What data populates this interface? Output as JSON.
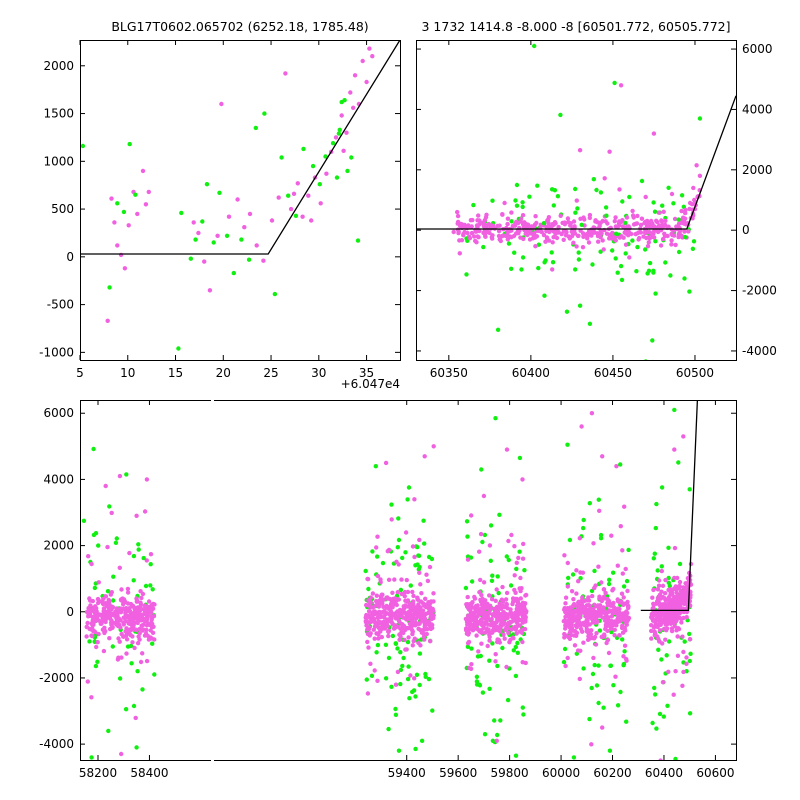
{
  "colors": {
    "series_a": "#f060e0",
    "series_b": "#10f010",
    "model_line": "#000000"
  },
  "chart_data": [
    {
      "id": "top-left",
      "type": "scatter",
      "title": "BLG17T0602.065702 (6252.18, 1785.48)",
      "xlabel": "",
      "ylabel": "",
      "x_offset_label": "+6.047e4",
      "xlim": [
        5,
        38.5
      ],
      "ylim": [
        -1080,
        2270
      ],
      "xticks": [
        5,
        10,
        15,
        20,
        25,
        30,
        35
      ],
      "yticks": [
        -1000,
        -500,
        0,
        500,
        1000,
        1500,
        2000
      ],
      "y_axis_side": "left",
      "model_line": {
        "x": [
          5,
          24.7,
          38.5
        ],
        "y": [
          30,
          30,
          2270
        ]
      },
      "series": [
        {
          "color": "#f060e0",
          "points": [
            [
              7.9,
              -670
            ],
            [
              8.3,
              610
            ],
            [
              8.6,
              360
            ],
            [
              8.9,
              120
            ],
            [
              9.3,
              20
            ],
            [
              9.7,
              -120
            ],
            [
              10.1,
              330
            ],
            [
              10.6,
              680
            ],
            [
              11.0,
              450
            ],
            [
              11.6,
              900
            ],
            [
              11.9,
              550
            ],
            [
              12.2,
              680
            ],
            [
              16.9,
              360
            ],
            [
              17.4,
              250
            ],
            [
              18.0,
              -50
            ],
            [
              18.6,
              -350
            ],
            [
              19.4,
              220
            ],
            [
              19.8,
              1600
            ],
            [
              20.6,
              420
            ],
            [
              21.5,
              600
            ],
            [
              22.2,
              310
            ],
            [
              22.8,
              450
            ],
            [
              23.5,
              120
            ],
            [
              24.2,
              -40
            ],
            [
              25.1,
              380
            ],
            [
              25.8,
              620
            ],
            [
              26.5,
              1920
            ],
            [
              27.1,
              500
            ],
            [
              27.8,
              770
            ],
            [
              28.3,
              420
            ],
            [
              28.9,
              640
            ],
            [
              29.6,
              830
            ],
            [
              30.2,
              560
            ],
            [
              30.8,
              870
            ],
            [
              31.3,
              1100
            ],
            [
              31.8,
              1250
            ],
            [
              32.4,
              1480
            ],
            [
              32.9,
              1300
            ],
            [
              33.3,
              1720
            ],
            [
              33.8,
              1900
            ],
            [
              34.2,
              1600
            ],
            [
              34.6,
              2050
            ],
            [
              35.0,
              1830
            ],
            [
              35.3,
              2180
            ],
            [
              35.6,
              2100
            ],
            [
              33.6,
              1560
            ],
            [
              32.6,
              1110
            ],
            [
              29.2,
              380
            ],
            [
              27.4,
              660
            ]
          ]
        },
        {
          "color": "#10f010",
          "points": [
            [
              5.3,
              1160
            ],
            [
              8.1,
              -320
            ],
            [
              8.9,
              560
            ],
            [
              9.6,
              470
            ],
            [
              10.2,
              1180
            ],
            [
              10.8,
              650
            ],
            [
              15.3,
              -960
            ],
            [
              15.6,
              460
            ],
            [
              16.6,
              -20
            ],
            [
              17.1,
              180
            ],
            [
              17.8,
              370
            ],
            [
              18.3,
              760
            ],
            [
              19.0,
              150
            ],
            [
              19.6,
              670
            ],
            [
              20.4,
              220
            ],
            [
              21.1,
              -170
            ],
            [
              21.9,
              180
            ],
            [
              22.7,
              -30
            ],
            [
              23.4,
              1350
            ],
            [
              24.3,
              1500
            ],
            [
              25.4,
              -390
            ],
            [
              26.1,
              1040
            ],
            [
              26.8,
              640
            ],
            [
              27.6,
              430
            ],
            [
              28.4,
              1130
            ],
            [
              29.4,
              950
            ],
            [
              30.1,
              760
            ],
            [
              30.7,
              1050
            ],
            [
              31.5,
              1190
            ],
            [
              32.1,
              1290
            ],
            [
              32.4,
              1620
            ],
            [
              32.7,
              1640
            ],
            [
              33.0,
              900
            ],
            [
              33.4,
              1040
            ],
            [
              34.1,
              170
            ],
            [
              32.2,
              1330
            ],
            [
              31.9,
              830
            ]
          ]
        }
      ]
    },
    {
      "id": "top-right",
      "type": "scatter",
      "title": "3 1732 1414.8 -8.000 -8 [60501.772, 60505.772]",
      "xlabel": "",
      "ylabel": "",
      "xlim": [
        60330,
        60525
      ],
      "ylim": [
        -4300,
        6300
      ],
      "xticks": [
        60350,
        60400,
        60450,
        60500
      ],
      "yticks": [
        -4000,
        -2000,
        0,
        2000,
        4000,
        6000
      ],
      "y_axis_side": "right",
      "model_line": {
        "x": [
          60330,
          60495,
          60525
        ],
        "y": [
          40,
          40,
          4450
        ]
      },
      "series": [
        {
          "color": "#f060e0",
          "points": [
            [
              60353,
              -60
            ],
            [
              60358,
              -330
            ],
            [
              60362,
              120
            ],
            [
              60367,
              -40
            ],
            [
              60372,
              330
            ],
            [
              60377,
              150
            ],
            [
              60382,
              -210
            ],
            [
              60386,
              380
            ],
            [
              60391,
              -110
            ],
            [
              60396,
              260
            ],
            [
              60402,
              -200
            ],
            [
              60406,
              140
            ],
            [
              60411,
              430
            ],
            [
              60415,
              -120
            ],
            [
              60420,
              -320
            ],
            [
              60424,
              160
            ],
            [
              60428,
              980
            ],
            [
              60432,
              -220
            ],
            [
              60436,
              500
            ],
            [
              60441,
              -380
            ],
            [
              60445,
              1720
            ],
            [
              60449,
              -160
            ],
            [
              60454,
              1350
            ],
            [
              60458,
              -480
            ],
            [
              60462,
              640
            ],
            [
              60466,
              -260
            ],
            [
              60470,
              1100
            ],
            [
              60474,
              -180
            ],
            [
              60478,
              580
            ],
            [
              60482,
              310
            ],
            [
              60486,
              1200
            ],
            [
              60490,
              -230
            ],
            [
              60494,
              380
            ],
            [
              60497,
              900
            ],
            [
              60499,
              1400
            ],
            [
              60501,
              2150
            ],
            [
              60503,
              1800
            ],
            [
              60500,
              700
            ],
            [
              60496,
              -40
            ],
            [
              60475,
              3200
            ],
            [
              60455,
              4800
            ],
            [
              60430,
              2650
            ],
            [
              60427,
              -4400
            ],
            [
              60460,
              -900
            ],
            [
              60413,
              -1300
            ],
            [
              60384,
              900
            ],
            [
              60448,
              2600
            ]
          ]
        },
        {
          "color": "#10f010",
          "points": [
            [
              60365,
              830
            ],
            [
              60371,
              -560
            ],
            [
              60380,
              -3300
            ],
            [
              60388,
              -1280
            ],
            [
              60395,
              770
            ],
            [
              60402,
              6100
            ],
            [
              60409,
              -1000
            ],
            [
              60414,
              820
            ],
            [
              60418,
              3820
            ],
            [
              60422,
              -2700
            ],
            [
              60427,
              -1300
            ],
            [
              60430,
              -2500
            ],
            [
              60436,
              -3100
            ],
            [
              60440,
              1330
            ],
            [
              60446,
              480
            ],
            [
              60451,
              4880
            ],
            [
              60455,
              -1190
            ],
            [
              60460,
              1100
            ],
            [
              60465,
              -560
            ],
            [
              60470,
              -4350
            ],
            [
              60474,
              -3650
            ],
            [
              60480,
              810
            ],
            [
              60485,
              -1500
            ],
            [
              60490,
              350
            ],
            [
              60494,
              -230
            ],
            [
              60503,
              3700
            ],
            [
              60408,
              230
            ],
            [
              60452,
              -120
            ],
            [
              60476,
              -2100
            ],
            [
              60431,
              180
            ]
          ]
        }
      ]
    },
    {
      "id": "bottom",
      "type": "scatter",
      "title": "",
      "xlabel": "",
      "ylabel": "",
      "xlim": [
        58130,
        60680
      ],
      "ylim": [
        -4480,
        6400
      ],
      "xticks": [
        58200,
        58400,
        59400,
        59600,
        59800,
        60000,
        60200,
        60400,
        60600
      ],
      "yticks": [
        -4000,
        -2000,
        0,
        2000,
        4000,
        6000
      ],
      "y_axis_side": "left",
      "model_line": {
        "x": [
          60310,
          60495,
          60530
        ],
        "y": [
          40,
          40,
          6400
        ]
      },
      "clusters": [
        {
          "x_range": [
            58155,
            58420
          ],
          "n": 320,
          "outliers": 60
        },
        {
          "x_range": [
            59240,
            59505
          ],
          "n": 340,
          "outliers": 95
        },
        {
          "x_range": [
            59630,
            59865
          ],
          "n": 320,
          "outliers": 80
        },
        {
          "x_range": [
            60010,
            60265
          ],
          "n": 320,
          "outliers": 80
        },
        {
          "x_range": [
            60350,
            60505
          ],
          "n": 280,
          "outliers": 55
        }
      ],
      "series": [
        {
          "color": "#f060e0",
          "points": [
            [
              58230,
              3800
            ],
            [
              58285,
              4100
            ],
            [
              58350,
              2900
            ],
            [
              58390,
              4000
            ],
            [
              59320,
              4500
            ],
            [
              59430,
              3400
            ],
            [
              59470,
              4700
            ],
            [
              59505,
              5000
            ],
            [
              59790,
              4900
            ],
            [
              59850,
              4000
            ],
            [
              59700,
              3500
            ],
            [
              60080,
              5600
            ],
            [
              60120,
              6000
            ],
            [
              60160,
              4700
            ],
            [
              60215,
              4400
            ],
            [
              60440,
              4900
            ],
            [
              60475,
              5300
            ],
            [
              60160,
              -3500
            ],
            [
              59750,
              -3900
            ],
            [
              58290,
              -4300
            ]
          ]
        },
        {
          "color": "#10f010",
          "points": [
            [
              58145,
              2750
            ],
            [
              58310,
              4150
            ],
            [
              58240,
              -3600
            ],
            [
              58350,
              -4100
            ],
            [
              59280,
              4400
            ],
            [
              59370,
              -4200
            ],
            [
              59460,
              -3900
            ],
            [
              59745,
              5850
            ],
            [
              59840,
              4650
            ],
            [
              59690,
              4300
            ],
            [
              60025,
              5050
            ],
            [
              60230,
              4450
            ],
            [
              60440,
              6100
            ],
            [
              60050,
              -4400
            ],
            [
              60190,
              -4200
            ],
            [
              59825,
              -4350
            ],
            [
              60445,
              -4450
            ],
            [
              60500,
              3700
            ],
            [
              58175,
              -4400
            ]
          ]
        }
      ]
    }
  ]
}
